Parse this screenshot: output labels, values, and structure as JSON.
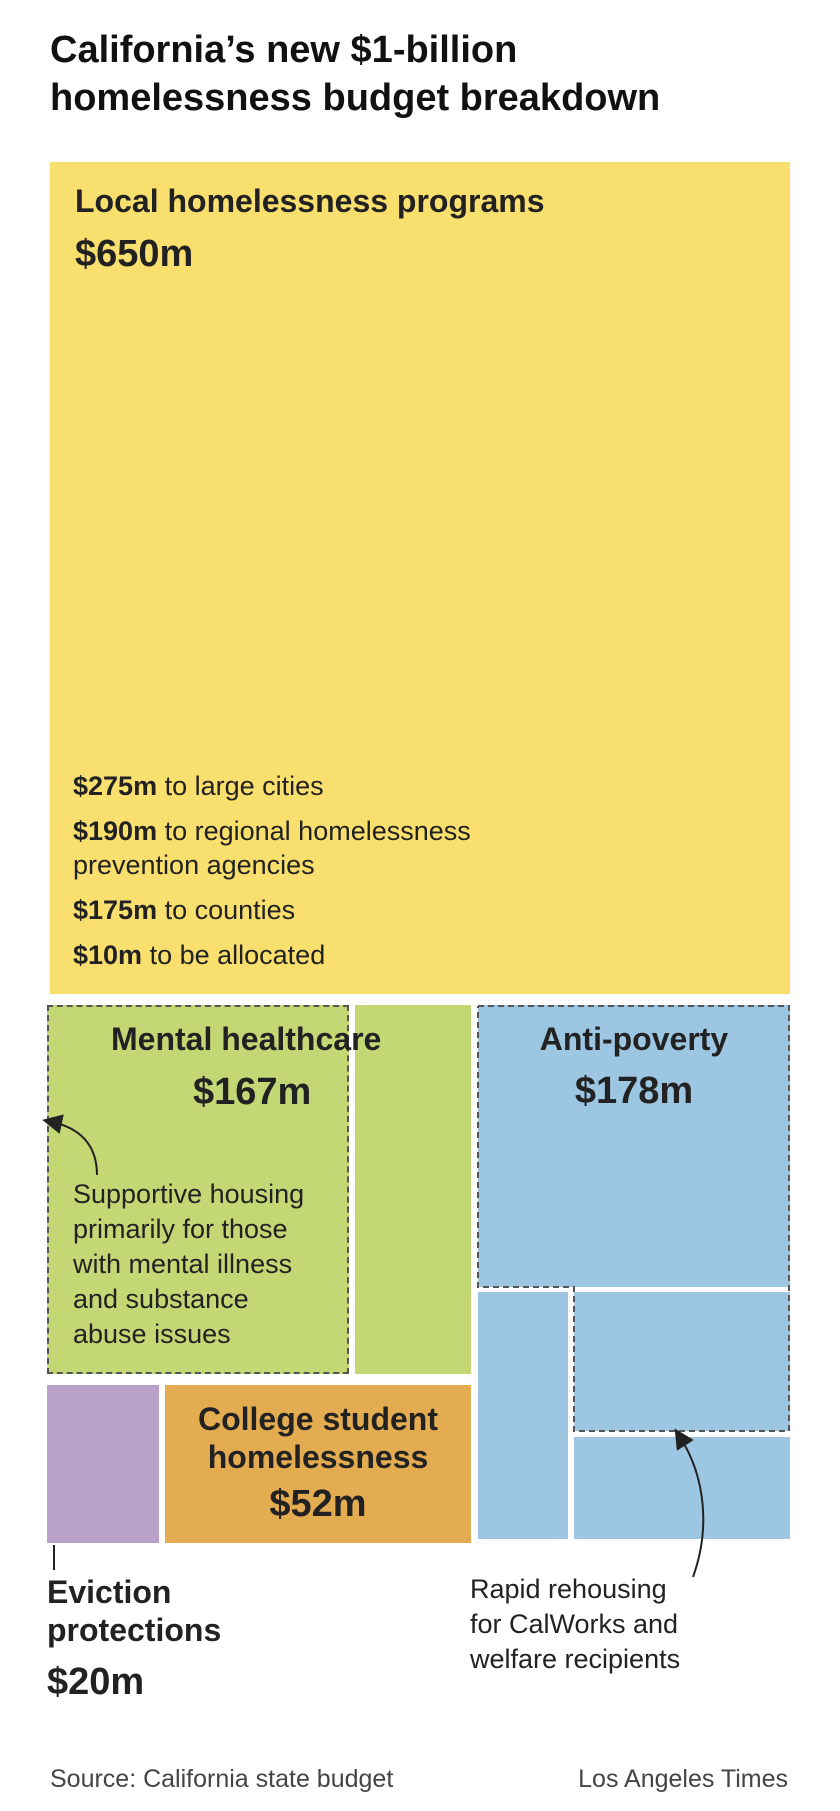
{
  "title_lines": [
    "California’s new $1-billion",
    "homelessness budget breakdown"
  ],
  "chart_data": {
    "type": "treemap",
    "title": "California’s new $1-billion homelessness budget breakdown",
    "total": "$1-billion",
    "categories": [
      {
        "name": "Local homelessness programs",
        "value_label": "$650m",
        "value": 650,
        "color": "#f9df6d",
        "breakdown": [
          {
            "amount": "$275m",
            "text": "to large cities"
          },
          {
            "amount": "$190m",
            "text": "to regional homelessness",
            "text2": "prevention agencies"
          },
          {
            "amount": "$175m",
            "text": "to counties"
          },
          {
            "amount": "$10m",
            "text": "to be allocated"
          }
        ]
      },
      {
        "name": "Mental healthcare",
        "value_label": "$167m",
        "value": 167,
        "color": "#c4d775",
        "annotation_lines": [
          "Supportive housing",
          "primarily for those",
          "with mental illness",
          "and substance",
          "abuse issues"
        ]
      },
      {
        "name": "Anti-poverty",
        "value_label": "$178m",
        "value": 178,
        "color": "#9cc6e2",
        "annotation_lines": [
          "Rapid rehousing",
          "for CalWorks and",
          "welfare recipients"
        ]
      },
      {
        "name_lines": [
          "College student",
          "homelessness"
        ],
        "value_label": "$52m",
        "value": 52,
        "color": "#e4ac50"
      },
      {
        "name_lines": [
          "Eviction",
          "protections"
        ],
        "value_label": "$20m",
        "value": 20,
        "color": "#b9a0c9"
      }
    ]
  },
  "footer": {
    "source": "Source: California state budget",
    "credit": "Los Angeles Times"
  }
}
